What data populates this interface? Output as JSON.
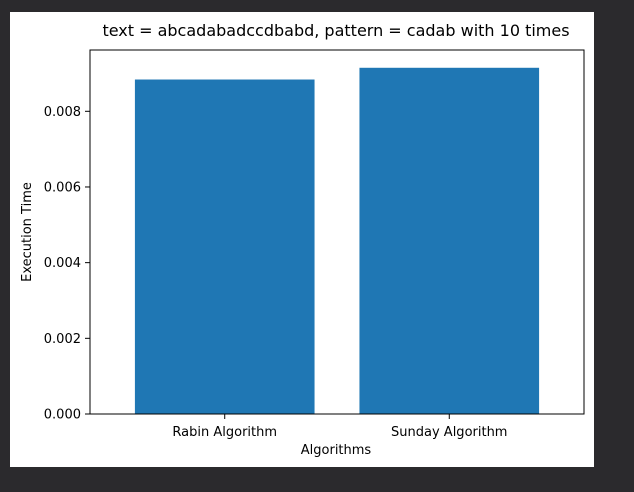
{
  "chart_data": {
    "type": "bar",
    "title": "text = abcadabadccdbabd, pattern = cadab  with 10 times",
    "xlabel": "Algorithms",
    "ylabel": "Execution Time",
    "categories": [
      "Rabin Algorithm",
      "Sunday Algorithm"
    ],
    "values": [
      0.00884,
      0.00915
    ],
    "ylim": [
      0,
      0.00962
    ],
    "yticks": [
      "0.000",
      "0.002",
      "0.004",
      "0.006",
      "0.008"
    ],
    "ytick_values": [
      0,
      0.002,
      0.004,
      0.006,
      0.008
    ],
    "bar_color": "#1f77b4",
    "grid": false,
    "legend": "none"
  }
}
